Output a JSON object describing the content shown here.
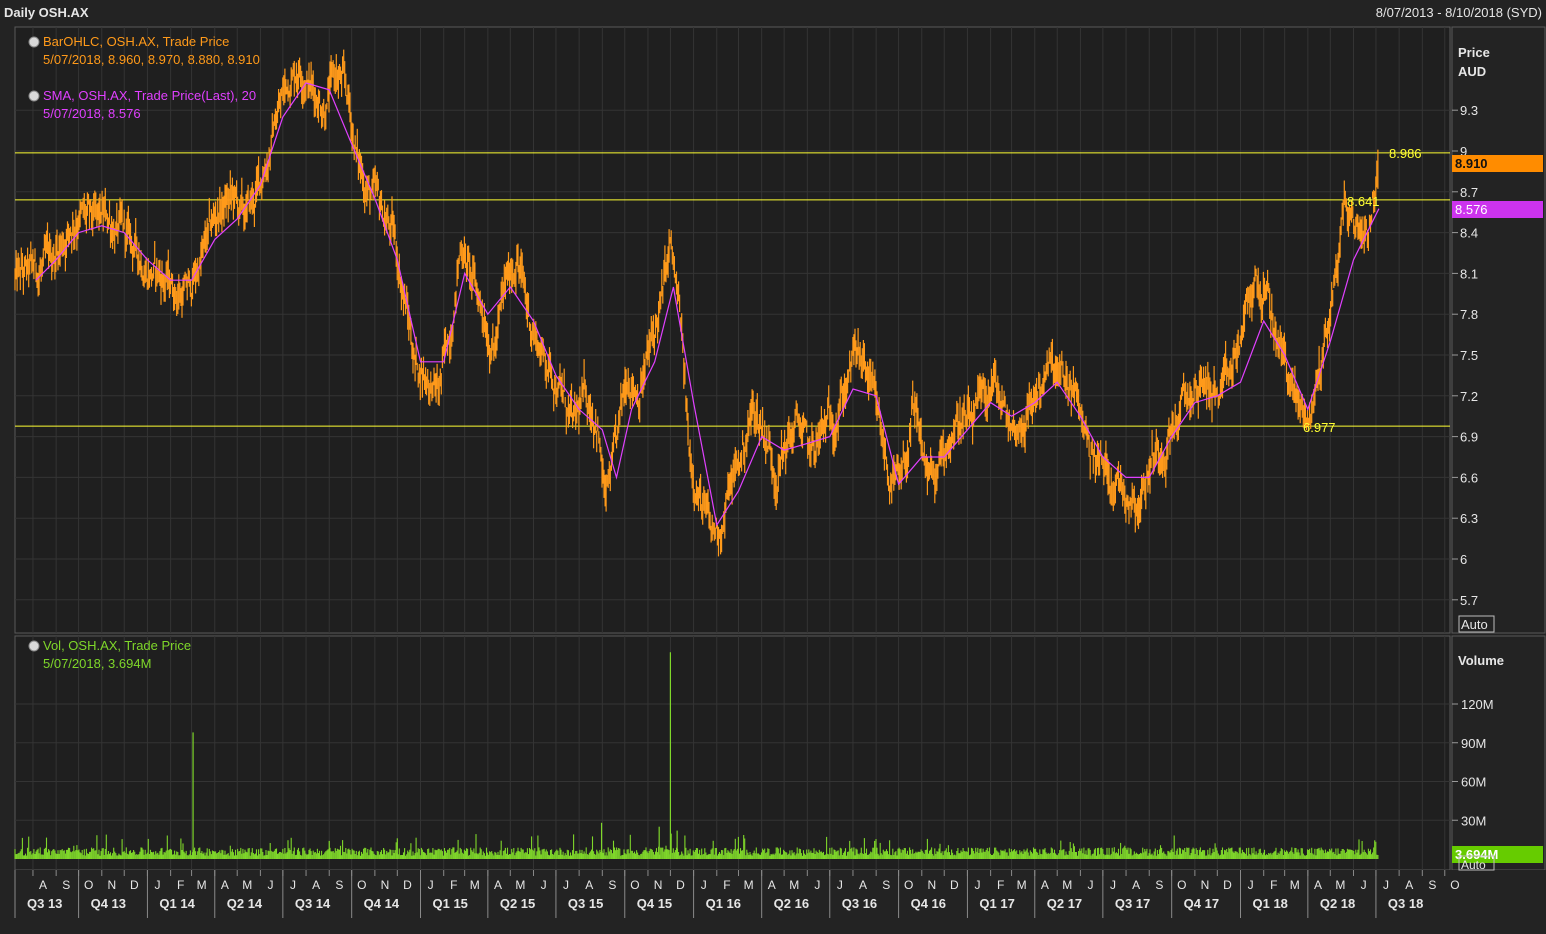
{
  "header": {
    "title": "Daily OSH.AX",
    "range": "8/07/2013 - 8/10/2018 (SYD)"
  },
  "price_panel": {
    "legend": [
      {
        "name": "BarOHLC, OSH.AX, Trade Price",
        "values": "5/07/2018, 8.960, 8.970, 8.880, 8.910",
        "color": "#ff9a1a"
      },
      {
        "name": "SMA, OSH.AX, Trade Price(Last),  20",
        "values": "5/07/2018, 8.576",
        "color": "#e040ff"
      }
    ],
    "axis_title": "Price",
    "axis_unit": "AUD",
    "auto_label": "Auto",
    "last_price_badge": "8.910",
    "sma_badge": "8.576"
  },
  "volume_panel": {
    "legend": [
      {
        "name": "Vol, OSH.AX, Trade Price",
        "values": "5/07/2018, 3.694M",
        "color": "#7fd72a"
      }
    ],
    "axis_title": "Volume",
    "auto_label": "Auto",
    "last_volume_badge": "3.694M"
  },
  "colors": {
    "background": "#232323",
    "price": "#ff9a1a",
    "sma": "#e040ff",
    "volume": "#7fd72a",
    "hline": "#ffff33",
    "text": "#e6e6e6"
  },
  "chart_data": [
    {
      "type": "line",
      "title": "Daily OSH.AX",
      "ylabel": "Price AUD",
      "ylim": [
        5.55,
        9.75
      ],
      "yticks": [
        "5.7",
        "6",
        "6.3",
        "6.6",
        "6.9",
        "7.2",
        "7.5",
        "7.8",
        "8.1",
        "8.4",
        "8.7",
        "9",
        "9.3"
      ],
      "x_start": "2013-07-08",
      "x_end": "2018-10-08",
      "x_months": [
        "A",
        "S",
        "O",
        "N",
        "D",
        "J",
        "F",
        "M",
        "A",
        "M",
        "J",
        "J",
        "A",
        "S",
        "O",
        "N",
        "D",
        "J",
        "F",
        "M",
        "A",
        "M",
        "J",
        "J",
        "A",
        "S",
        "O",
        "N",
        "D",
        "J",
        "F",
        "M",
        "A",
        "M",
        "J",
        "J",
        "A",
        "S",
        "O",
        "N",
        "D",
        "J",
        "F",
        "M",
        "A",
        "M",
        "J",
        "J",
        "A",
        "S",
        "O",
        "N",
        "D",
        "J",
        "F",
        "M",
        "A",
        "M",
        "J",
        "J",
        "A",
        "S",
        "O"
      ],
      "x_quarters": [
        "Q3 13",
        "Q4 13",
        "Q1 14",
        "Q2 14",
        "Q3 14",
        "Q4 14",
        "Q1 15",
        "Q2 15",
        "Q3 15",
        "Q4 15",
        "Q1 16",
        "Q2 16",
        "Q3 16",
        "Q4 16",
        "Q1 17",
        "Q2 17",
        "Q3 17",
        "Q4 17",
        "Q1 18",
        "Q2 18",
        "Q3 18"
      ],
      "horizontal_lines": [
        {
          "value": 8.986,
          "label": "8.986"
        },
        {
          "value": 8.641,
          "label": "8.641"
        },
        {
          "value": 6.977,
          "label": "6.977"
        }
      ],
      "series": [
        {
          "name": "BarOHLC, OSH.AX, Trade Price",
          "points": [
            [
              "2013-07-08",
              8.05
            ],
            [
              "2013-08-01",
              8.1
            ],
            [
              "2013-08-20",
              8.15
            ],
            [
              "2013-09-10",
              8.35
            ],
            [
              "2013-10-01",
              8.55
            ],
            [
              "2013-10-20",
              8.45
            ],
            [
              "2013-11-10",
              8.5
            ],
            [
              "2013-12-05",
              8.35
            ],
            [
              "2014-01-01",
              8.15
            ],
            [
              "2014-01-25",
              8.05
            ],
            [
              "2014-02-15",
              7.95
            ],
            [
              "2014-03-01",
              8.0
            ],
            [
              "2014-03-20",
              8.3
            ],
            [
              "2014-04-05",
              8.55
            ],
            [
              "2014-04-25",
              8.65
            ],
            [
              "2014-05-10",
              8.5
            ],
            [
              "2014-05-25",
              8.65
            ],
            [
              "2014-06-10",
              8.95
            ],
            [
              "2014-06-25",
              9.3
            ],
            [
              "2014-07-10",
              9.55
            ],
            [
              "2014-07-25",
              9.65
            ],
            [
              "2014-08-10",
              9.45
            ],
            [
              "2014-08-25",
              9.35
            ],
            [
              "2014-09-10",
              9.55
            ],
            [
              "2014-09-25",
              9.4
            ],
            [
              "2014-10-10",
              8.9
            ],
            [
              "2014-10-25",
              8.7
            ],
            [
              "2014-11-10",
              8.55
            ],
            [
              "2014-11-25",
              8.4
            ],
            [
              "2014-12-10",
              7.95
            ],
            [
              "2014-12-25",
              7.45
            ],
            [
              "2015-01-10",
              7.35
            ],
            [
              "2015-01-25",
              7.2
            ],
            [
              "2015-02-10",
              7.7
            ],
            [
              "2015-02-25",
              8.35
            ],
            [
              "2015-03-10",
              8.05
            ],
            [
              "2015-03-25",
              7.85
            ],
            [
              "2015-04-10",
              7.55
            ],
            [
              "2015-04-25",
              8.0
            ],
            [
              "2015-05-10",
              8.25
            ],
            [
              "2015-05-25",
              7.8
            ],
            [
              "2015-06-10",
              7.55
            ],
            [
              "2015-06-25",
              7.4
            ],
            [
              "2015-07-10",
              7.2
            ],
            [
              "2015-07-25",
              6.95
            ],
            [
              "2015-08-10",
              7.2
            ],
            [
              "2015-08-25",
              7.05
            ],
            [
              "2015-09-05",
              6.4
            ],
            [
              "2015-09-20",
              6.8
            ],
            [
              "2015-10-05",
              7.4
            ],
            [
              "2015-10-20",
              7.25
            ],
            [
              "2015-11-05",
              7.55
            ],
            [
              "2015-11-20",
              7.9
            ],
            [
              "2015-12-01",
              8.3
            ],
            [
              "2015-12-15",
              7.7
            ],
            [
              "2015-12-25",
              6.85
            ],
            [
              "2016-01-10",
              6.45
            ],
            [
              "2016-01-25",
              6.15
            ],
            [
              "2016-02-10",
              6.3
            ],
            [
              "2016-02-20",
              6.55
            ],
            [
              "2016-03-05",
              6.75
            ],
            [
              "2016-03-20",
              7.1
            ],
            [
              "2016-04-05",
              6.95
            ],
            [
              "2016-04-20",
              6.65
            ],
            [
              "2016-05-05",
              6.85
            ],
            [
              "2016-05-20",
              7.0
            ],
            [
              "2016-06-05",
              6.75
            ],
            [
              "2016-06-20",
              6.9
            ],
            [
              "2016-07-05",
              7.05
            ],
            [
              "2016-07-20",
              7.25
            ],
            [
              "2016-08-05",
              7.5
            ],
            [
              "2016-08-20",
              7.35
            ],
            [
              "2016-09-05",
              6.95
            ],
            [
              "2016-09-20",
              6.6
            ],
            [
              "2016-10-05",
              6.5
            ],
            [
              "2016-10-20",
              7.05
            ],
            [
              "2016-11-05",
              6.7
            ],
            [
              "2016-11-20",
              6.55
            ],
            [
              "2016-12-05",
              6.85
            ],
            [
              "2016-12-20",
              7.05
            ],
            [
              "2017-01-05",
              6.95
            ],
            [
              "2017-01-20",
              7.1
            ],
            [
              "2017-02-05",
              7.3
            ],
            [
              "2017-02-20",
              7.05
            ],
            [
              "2017-03-05",
              6.95
            ],
            [
              "2017-03-20",
              7.05
            ],
            [
              "2017-04-05",
              7.25
            ],
            [
              "2017-04-20",
              7.4
            ],
            [
              "2017-05-05",
              7.3
            ],
            [
              "2017-05-20",
              7.25
            ],
            [
              "2017-06-05",
              7.0
            ],
            [
              "2017-06-20",
              6.75
            ],
            [
              "2017-07-05",
              6.65
            ],
            [
              "2017-07-20",
              6.6
            ],
            [
              "2017-08-05",
              6.5
            ],
            [
              "2017-08-20",
              6.45
            ],
            [
              "2017-09-05",
              6.75
            ],
            [
              "2017-09-20",
              6.85
            ],
            [
              "2017-10-05",
              7.0
            ],
            [
              "2017-10-20",
              7.15
            ],
            [
              "2017-11-05",
              7.25
            ],
            [
              "2017-11-20",
              7.3
            ],
            [
              "2017-12-05",
              7.15
            ],
            [
              "2017-12-20",
              7.35
            ],
            [
              "2018-01-05",
              7.7
            ],
            [
              "2018-01-20",
              8.05
            ],
            [
              "2018-02-05",
              7.9
            ],
            [
              "2018-02-20",
              7.6
            ],
            [
              "2018-03-05",
              7.4
            ],
            [
              "2018-03-20",
              7.1
            ],
            [
              "2018-04-05",
              7.05
            ],
            [
              "2018-04-20",
              7.5
            ],
            [
              "2018-05-05",
              7.95
            ],
            [
              "2018-05-20",
              8.6
            ],
            [
              "2018-06-05",
              8.45
            ],
            [
              "2018-06-20",
              8.45
            ],
            [
              "2018-07-05",
              8.91
            ]
          ]
        },
        {
          "name": "SMA, OSH.AX, Trade Price(Last),  20",
          "points": [
            [
              "2013-08-05",
              8.05
            ],
            [
              "2013-09-01",
              8.2
            ],
            [
              "2013-10-01",
              8.4
            ],
            [
              "2013-11-01",
              8.45
            ],
            [
              "2013-12-01",
              8.4
            ],
            [
              "2014-01-01",
              8.2
            ],
            [
              "2014-02-01",
              8.05
            ],
            [
              "2014-03-01",
              8.05
            ],
            [
              "2014-04-01",
              8.35
            ],
            [
              "2014-05-01",
              8.5
            ],
            [
              "2014-06-01",
              8.75
            ],
            [
              "2014-07-01",
              9.25
            ],
            [
              "2014-08-01",
              9.5
            ],
            [
              "2014-09-01",
              9.45
            ],
            [
              "2014-10-01",
              9.05
            ],
            [
              "2014-11-01",
              8.65
            ],
            [
              "2014-12-01",
              8.2
            ],
            [
              "2015-01-01",
              7.45
            ],
            [
              "2015-02-01",
              7.45
            ],
            [
              "2015-03-01",
              8.1
            ],
            [
              "2015-04-01",
              7.8
            ],
            [
              "2015-05-01",
              8.0
            ],
            [
              "2015-06-01",
              7.75
            ],
            [
              "2015-07-01",
              7.35
            ],
            [
              "2015-08-01",
              7.1
            ],
            [
              "2015-09-01",
              6.95
            ],
            [
              "2015-09-20",
              6.6
            ],
            [
              "2015-10-10",
              7.1
            ],
            [
              "2015-11-10",
              7.45
            ],
            [
              "2015-12-05",
              8.0
            ],
            [
              "2016-01-01",
              7.15
            ],
            [
              "2016-02-01",
              6.25
            ],
            [
              "2016-03-01",
              6.5
            ],
            [
              "2016-04-01",
              6.9
            ],
            [
              "2016-05-01",
              6.8
            ],
            [
              "2016-06-01",
              6.85
            ],
            [
              "2016-07-01",
              6.9
            ],
            [
              "2016-08-01",
              7.25
            ],
            [
              "2016-09-01",
              7.2
            ],
            [
              "2016-10-01",
              6.55
            ],
            [
              "2016-11-01",
              6.75
            ],
            [
              "2016-12-01",
              6.75
            ],
            [
              "2017-01-01",
              6.95
            ],
            [
              "2017-02-01",
              7.15
            ],
            [
              "2017-03-01",
              7.05
            ],
            [
              "2017-04-01",
              7.15
            ],
            [
              "2017-05-01",
              7.3
            ],
            [
              "2017-06-01",
              7.05
            ],
            [
              "2017-07-01",
              6.75
            ],
            [
              "2017-08-01",
              6.6
            ],
            [
              "2017-09-01",
              6.6
            ],
            [
              "2017-10-01",
              6.9
            ],
            [
              "2017-11-01",
              7.15
            ],
            [
              "2017-12-01",
              7.2
            ],
            [
              "2018-01-01",
              7.3
            ],
            [
              "2018-02-01",
              7.75
            ],
            [
              "2018-03-01",
              7.5
            ],
            [
              "2018-04-01",
              7.1
            ],
            [
              "2018-05-01",
              7.6
            ],
            [
              "2018-06-01",
              8.2
            ],
            [
              "2018-07-05",
              8.576
            ]
          ]
        }
      ]
    },
    {
      "type": "bar",
      "title": "Vol, OSH.AX, Trade Price",
      "ylabel": "Volume",
      "ylim": [
        0,
        150000000
      ],
      "yticks": [
        "30M",
        "60M",
        "90M",
        "120M"
      ],
      "x_start": "2013-07-08",
      "x_end": "2018-10-08",
      "baseline_volume": 5000000,
      "spikes": [
        {
          "date": "2014-03-03",
          "value": 98000000
        },
        {
          "date": "2015-08-31",
          "value": 28000000
        },
        {
          "date": "2015-11-16",
          "value": 25000000
        },
        {
          "date": "2015-12-01",
          "value": 160000000
        },
        {
          "date": "2015-12-10",
          "value": 22000000
        },
        {
          "date": "2014-12-01",
          "value": 16000000
        },
        {
          "date": "2014-09-01",
          "value": 14000000
        },
        {
          "date": "2016-08-30",
          "value": 14000000
        }
      ],
      "last": {
        "date": "2018-07-05",
        "value": 3694000
      }
    }
  ]
}
